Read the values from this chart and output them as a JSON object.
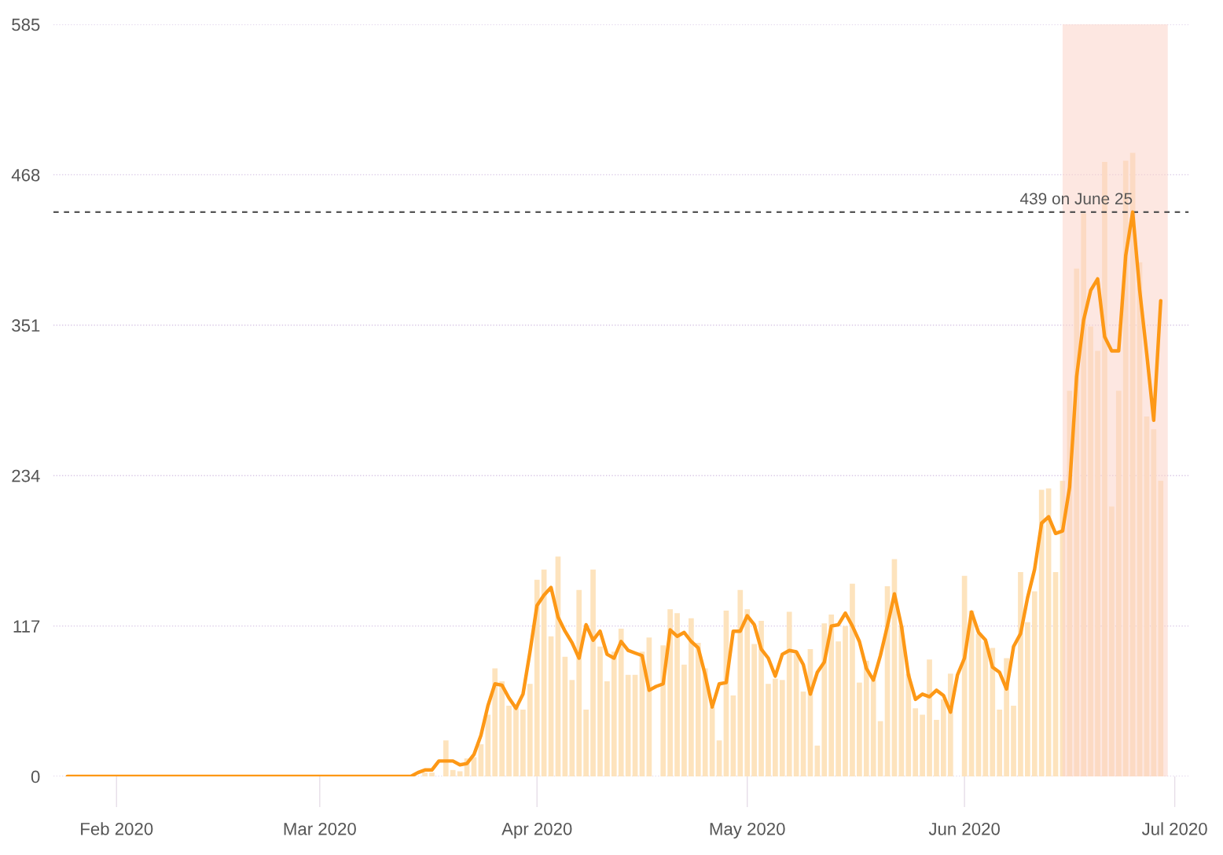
{
  "chart_data": {
    "type": "bar",
    "series": [
      {
        "color": "#fde3bd",
        "x": [
          "2020-03-15",
          "2020-03-16",
          "2020-03-17",
          "2020-03-18",
          "2020-03-19",
          "2020-03-20",
          "2020-03-21",
          "2020-03-22",
          "2020-03-23",
          "2020-03-24",
          "2020-03-25",
          "2020-03-26",
          "2020-03-27",
          "2020-03-28",
          "2020-03-29",
          "2020-03-30",
          "2020-03-31",
          "2020-04-01",
          "2020-04-02",
          "2020-04-03",
          "2020-04-04",
          "2020-04-05",
          "2020-04-06",
          "2020-04-07",
          "2020-04-08",
          "2020-04-09",
          "2020-04-10",
          "2020-04-11",
          "2020-04-12",
          "2020-04-13",
          "2020-04-14",
          "2020-04-15",
          "2020-04-16",
          "2020-04-17",
          "2020-04-18",
          "2020-04-19",
          "2020-04-20",
          "2020-04-21",
          "2020-04-22",
          "2020-04-23",
          "2020-04-24",
          "2020-04-25",
          "2020-04-26",
          "2020-04-27",
          "2020-04-28",
          "2020-04-29",
          "2020-04-30",
          "2020-05-01",
          "2020-05-02",
          "2020-05-03",
          "2020-05-04",
          "2020-05-05",
          "2020-05-06",
          "2020-05-07",
          "2020-05-08",
          "2020-05-09",
          "2020-05-10",
          "2020-05-11",
          "2020-05-12",
          "2020-05-13",
          "2020-05-14",
          "2020-05-15",
          "2020-05-16",
          "2020-05-17",
          "2020-05-18",
          "2020-05-19",
          "2020-05-20",
          "2020-05-21",
          "2020-05-22",
          "2020-05-23",
          "2020-05-24",
          "2020-05-25",
          "2020-05-26",
          "2020-05-27",
          "2020-05-28",
          "2020-05-29",
          "2020-05-30",
          "2020-05-31",
          "2020-06-01",
          "2020-06-02",
          "2020-06-03",
          "2020-06-04",
          "2020-06-05",
          "2020-06-06",
          "2020-06-07",
          "2020-06-08",
          "2020-06-09",
          "2020-06-10",
          "2020-06-11",
          "2020-06-12",
          "2020-06-13",
          "2020-06-14",
          "2020-06-15",
          "2020-06-16",
          "2020-06-17",
          "2020-06-18",
          "2020-06-19",
          "2020-06-20",
          "2020-06-21",
          "2020-06-22",
          "2020-06-23",
          "2020-06-24",
          "2020-06-25",
          "2020-06-26",
          "2020-06-27",
          "2020-06-28",
          "2020-06-29"
        ],
        "values": [
          0,
          3,
          3,
          0,
          28,
          5,
          4,
          14,
          15,
          25,
          48,
          84,
          74,
          55,
          55,
          52,
          72,
          153,
          161,
          109,
          171,
          93,
          75,
          145,
          52,
          161,
          101,
          74,
          97,
          115,
          79,
          79,
          97,
          108,
          0,
          102,
          130,
          127,
          87,
          123,
          104,
          84,
          54,
          28,
          129,
          63,
          145,
          130,
          103,
          121,
          72,
          76,
          75,
          128,
          97,
          66,
          99,
          24,
          119,
          126,
          105,
          117,
          150,
          73,
          90,
          75,
          43,
          148,
          169,
          117,
          80,
          53,
          48,
          91,
          44,
          60,
          80,
          0,
          156,
          129,
          111,
          105,
          100,
          52,
          92,
          55,
          159,
          120,
          144,
          223,
          224,
          159,
          230,
          300,
          395,
          438,
          350,
          331,
          478,
          210,
          300,
          479,
          485,
          400,
          280,
          270,
          230
        ]
      },
      {
        "type": "line",
        "color": "#fd9816",
        "x": [
          "2020-01-25",
          "2020-03-14",
          "2020-03-15",
          "2020-03-16",
          "2020-03-17",
          "2020-03-18",
          "2020-03-19",
          "2020-03-20",
          "2020-03-21",
          "2020-03-22",
          "2020-03-23",
          "2020-03-24",
          "2020-03-25",
          "2020-03-26",
          "2020-03-27",
          "2020-03-28",
          "2020-03-29",
          "2020-03-30",
          "2020-03-31",
          "2020-04-01",
          "2020-04-02",
          "2020-04-03",
          "2020-04-04",
          "2020-04-05",
          "2020-04-06",
          "2020-04-07",
          "2020-04-08",
          "2020-04-09",
          "2020-04-10",
          "2020-04-11",
          "2020-04-12",
          "2020-04-13",
          "2020-04-14",
          "2020-04-15",
          "2020-04-16",
          "2020-04-17",
          "2020-04-18",
          "2020-04-19",
          "2020-04-20",
          "2020-04-21",
          "2020-04-22",
          "2020-04-23",
          "2020-04-24",
          "2020-04-25",
          "2020-04-26",
          "2020-04-27",
          "2020-04-28",
          "2020-04-29",
          "2020-04-30",
          "2020-05-01",
          "2020-05-02",
          "2020-05-03",
          "2020-05-04",
          "2020-05-05",
          "2020-05-06",
          "2020-05-07",
          "2020-05-08",
          "2020-05-09",
          "2020-05-10",
          "2020-05-11",
          "2020-05-12",
          "2020-05-13",
          "2020-05-14",
          "2020-05-15",
          "2020-05-16",
          "2020-05-17",
          "2020-05-18",
          "2020-05-19",
          "2020-05-20",
          "2020-05-21",
          "2020-05-22",
          "2020-05-23",
          "2020-05-24",
          "2020-05-25",
          "2020-05-26",
          "2020-05-27",
          "2020-05-28",
          "2020-05-29",
          "2020-05-30",
          "2020-05-31",
          "2020-06-01",
          "2020-06-02",
          "2020-06-03",
          "2020-06-04",
          "2020-06-05",
          "2020-06-06",
          "2020-06-07",
          "2020-06-08",
          "2020-06-09",
          "2020-06-10",
          "2020-06-11",
          "2020-06-12",
          "2020-06-13",
          "2020-06-14",
          "2020-06-15",
          "2020-06-16",
          "2020-06-17",
          "2020-06-18",
          "2020-06-19",
          "2020-06-20",
          "2020-06-21",
          "2020-06-22",
          "2020-06-23",
          "2020-06-24",
          "2020-06-25",
          "2020-06-26",
          "2020-06-27",
          "2020-06-28",
          "2020-06-29"
        ],
        "values": [
          0,
          0,
          3,
          5,
          5,
          12,
          12,
          12,
          9,
          10,
          17,
          32,
          55,
          72,
          71,
          61,
          53,
          64,
          97,
          133,
          141,
          147,
          124,
          113,
          104,
          92,
          118,
          106,
          113,
          95,
          92,
          105,
          98,
          96,
          94,
          67,
          70,
          72,
          114,
          109,
          112,
          105,
          100,
          79,
          54,
          72,
          73,
          113,
          113,
          125,
          118,
          99,
          92,
          78,
          95,
          98,
          97,
          87,
          64,
          81,
          89,
          117,
          118,
          127,
          117,
          105,
          84,
          75,
          94,
          117,
          142,
          117,
          79,
          60,
          64,
          62,
          67,
          63,
          50,
          79,
          92,
          128,
          112,
          106,
          85,
          81,
          68,
          101,
          111,
          139,
          161,
          197,
          202,
          189,
          191,
          225,
          311,
          355,
          378,
          387,
          342,
          331,
          331,
          405,
          439,
          378,
          329,
          277,
          370
        ]
      }
    ],
    "xlim": [
      "2020-01-23",
      "2020-07-03"
    ],
    "xticks": [
      {
        "value": "2020-02-01",
        "label": "Feb 2020"
      },
      {
        "value": "2020-03-01",
        "label": "Mar 2020"
      },
      {
        "value": "2020-04-01",
        "label": "Apr 2020"
      },
      {
        "value": "2020-05-01",
        "label": "May 2020"
      },
      {
        "value": "2020-06-01",
        "label": "Jun 2020"
      },
      {
        "value": "2020-07-01",
        "label": "Jul 2020"
      }
    ],
    "ylim": [
      0,
      585
    ],
    "yticks": [
      0,
      117,
      234,
      351,
      468,
      585
    ],
    "grid": "y",
    "ref_lines": [
      {
        "axis": "y",
        "value": 439,
        "color": "#555555",
        "line_style": "dashed"
      }
    ],
    "bands": [
      {
        "axis": "x",
        "from": "2020-06-15",
        "to": "2020-06-30",
        "color": "#fbd3c9"
      }
    ],
    "annotations": [
      {
        "text": "439 on June 25",
        "x": "2020-06-25",
        "y": 439
      }
    ]
  }
}
